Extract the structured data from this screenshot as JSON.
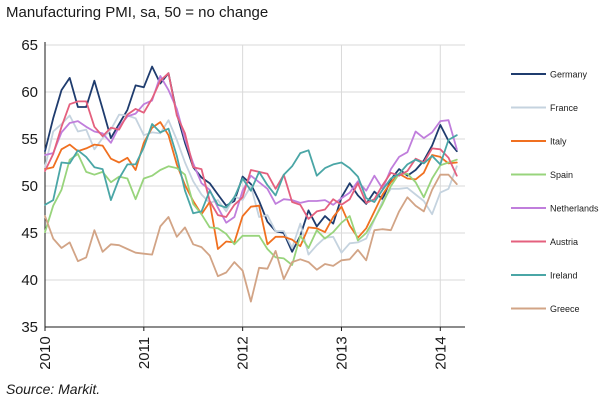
{
  "chart_data": {
    "type": "line",
    "title": "Manufacturing PMI, sa, 50 = no change",
    "source": "Source: Markit.",
    "xlabel": "",
    "ylabel": "",
    "x_start": "2010-01",
    "x_ticks": [
      "2010",
      "2011",
      "2012",
      "2013",
      "2014"
    ],
    "y_ticks": [
      "35",
      "40",
      "45",
      "50",
      "55",
      "60",
      "65"
    ],
    "ylim": [
      35,
      65
    ],
    "grid": true,
    "legend_position": "right",
    "series": [
      {
        "name": "Germany",
        "color": "#1f3c6e",
        "values": [
          53.7,
          57.2,
          60.2,
          61.5,
          58.4,
          58.4,
          61.2,
          58.2,
          55.1,
          56.6,
          58.1,
          60.7,
          60.5,
          62.7,
          60.9,
          62.0,
          57.7,
          54.6,
          52.0,
          50.9,
          50.3,
          49.1,
          47.9,
          48.4,
          51.0,
          50.2,
          48.4,
          46.2,
          45.2,
          45.0,
          43.0,
          44.7,
          47.4,
          45.7,
          46.8,
          46.0,
          48.8,
          50.3,
          49.0,
          48.1,
          49.4,
          48.6,
          50.7,
          51.8,
          51.1,
          51.7,
          52.7,
          54.3,
          56.5,
          54.8,
          53.7
        ]
      },
      {
        "name": "France",
        "color": "#c5d3df",
        "values": [
          52.0,
          55.8,
          56.6,
          57.5,
          55.8,
          56.0,
          53.9,
          55.1,
          56.0,
          57.6,
          57.5,
          57.2,
          55.4,
          55.7,
          55.6,
          57.0,
          54.9,
          52.5,
          50.5,
          49.1,
          48.2,
          48.5,
          47.3,
          48.9,
          48.5,
          50.0,
          46.7,
          46.9,
          45.2,
          45.2,
          43.4,
          46.0,
          42.7,
          43.7,
          44.5,
          44.6,
          42.9,
          43.9,
          44.0,
          44.4,
          46.4,
          48.4,
          49.7,
          49.7,
          49.8,
          49.1,
          48.4,
          47.0,
          49.3,
          49.7,
          52.1
        ]
      },
      {
        "name": "Italy",
        "color": "#f07020",
        "values": [
          51.8,
          52.0,
          53.9,
          54.4,
          53.7,
          54.0,
          54.4,
          54.3,
          52.9,
          52.5,
          53.0,
          51.7,
          54.6,
          56.2,
          56.8,
          55.4,
          52.3,
          50.1,
          48.4,
          47.0,
          48.3,
          43.3,
          44.1,
          44.0,
          46.8,
          47.8,
          47.9,
          43.8,
          44.6,
          44.6,
          44.3,
          43.6,
          45.6,
          45.5,
          45.1,
          46.7,
          47.8,
          45.8,
          44.5,
          45.5,
          47.3,
          49.1,
          50.4,
          51.3,
          50.8,
          50.7,
          51.4,
          53.3,
          53.1,
          52.4,
          52.5
        ]
      },
      {
        "name": "Spain",
        "color": "#98d47c",
        "values": [
          45.1,
          47.9,
          49.6,
          52.8,
          53.4,
          51.5,
          51.2,
          51.5,
          50.4,
          51.0,
          50.8,
          48.6,
          50.8,
          51.1,
          51.7,
          52.1,
          51.9,
          51.2,
          48.1,
          47.0,
          45.6,
          45.5,
          44.9,
          43.8,
          44.7,
          44.7,
          44.7,
          43.3,
          42.4,
          42.3,
          41.6,
          44.7,
          43.4,
          45.3,
          44.4,
          45.1,
          46.1,
          46.8,
          44.2,
          45.0,
          46.5,
          48.1,
          50.0,
          51.3,
          51.3,
          50.4,
          48.8,
          50.8,
          52.2,
          52.5,
          52.8
        ]
      },
      {
        "name": "Netherlands",
        "color": "#c07edc",
        "values": [
          53.3,
          53.5,
          55.7,
          56.7,
          56.9,
          56.3,
          55.8,
          55.6,
          54.6,
          56.3,
          57.4,
          57.7,
          58.7,
          59.1,
          61.7,
          60.2,
          58.2,
          55.0,
          52.4,
          50.3,
          49.6,
          47.7,
          46.1,
          46.7,
          49.5,
          51.1,
          50.4,
          49.7,
          48.1,
          48.6,
          48.5,
          48.2,
          48.4,
          48.4,
          48.5,
          48.0,
          48.7,
          49.3,
          50.5,
          49.5,
          51.1,
          49.7,
          51.8,
          53.1,
          53.6,
          55.8,
          55.1,
          55.7,
          56.9,
          57.0,
          53.9
        ]
      },
      {
        "name": "Austria",
        "color": "#e4607e",
        "values": [
          51.6,
          53.4,
          56.3,
          58.7,
          59.0,
          59.0,
          56.3,
          55.3,
          56.2,
          56.0,
          57.6,
          58.2,
          57.8,
          59.3,
          61.2,
          62.0,
          57.5,
          55.6,
          52.0,
          51.8,
          48.4,
          46.9,
          46.7,
          48.0,
          48.8,
          51.7,
          51.5,
          51.3,
          49.7,
          51.2,
          48.3,
          48.0,
          46.5,
          47.3,
          47.5,
          48.6,
          48.0,
          48.6,
          50.3,
          48.2,
          48.6,
          50.1,
          51.4,
          51.1,
          51.6,
          52.9,
          52.5,
          54.0,
          53.9,
          53.0,
          51.1
        ]
      },
      {
        "name": "Ireland",
        "color": "#4aa6a6",
        "values": [
          48.0,
          48.5,
          52.5,
          52.4,
          53.8,
          53.1,
          52.0,
          51.8,
          48.5,
          50.8,
          52.3,
          52.3,
          54.1,
          56.6,
          55.7,
          56.1,
          53.2,
          49.5,
          47.1,
          47.3,
          49.5,
          48.0,
          47.7,
          48.8,
          50.8,
          49.5,
          51.5,
          50.1,
          49.0,
          51.2,
          52.1,
          53.5,
          53.8,
          51.1,
          51.9,
          52.3,
          52.5,
          51.9,
          51.0,
          48.7,
          48.3,
          49.6,
          50.8,
          51.3,
          52.3,
          52.8,
          52.4,
          53.2,
          52.3,
          54.9,
          55.4
        ]
      },
      {
        "name": "Greece",
        "color": "#d2a486",
        "values": [
          46.8,
          44.4,
          43.4,
          44.0,
          42.0,
          42.4,
          45.3,
          43.0,
          43.8,
          43.7,
          43.3,
          42.9,
          42.8,
          42.7,
          45.7,
          46.7,
          44.6,
          45.6,
          43.8,
          43.5,
          42.6,
          40.4,
          40.8,
          41.9,
          41.0,
          37.7,
          41.3,
          41.2,
          43.1,
          40.1,
          41.9,
          42.2,
          41.9,
          41.1,
          41.7,
          41.5,
          42.1,
          42.2,
          43.2,
          42.1,
          45.3,
          45.4,
          45.3,
          47.3,
          48.8,
          47.9,
          47.3,
          49.6,
          51.2,
          51.2,
          50.2
        ]
      }
    ]
  }
}
